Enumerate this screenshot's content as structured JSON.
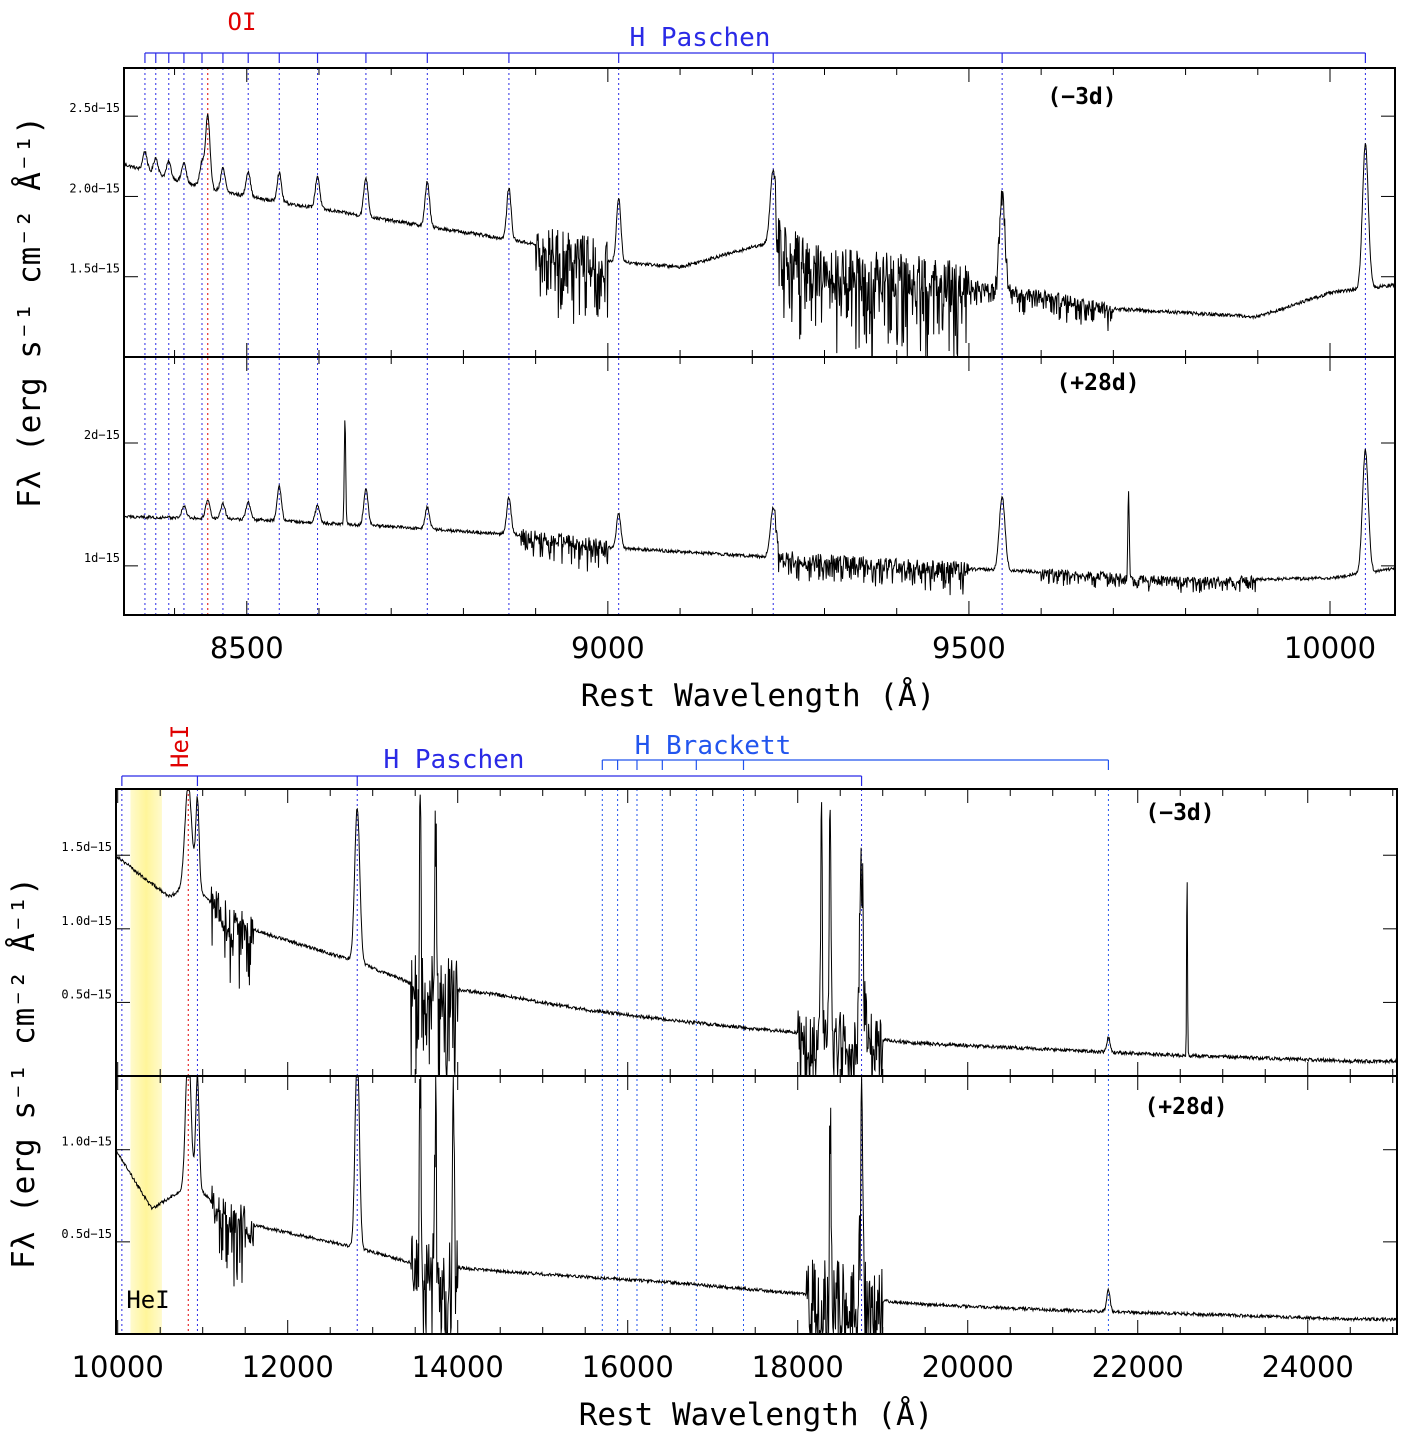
{
  "colors": {
    "hydrogen_series": "#2a2ae6",
    "brackett_series": "#2255ee",
    "element_line": "#e00000",
    "spectrum": "#000000",
    "telluric_band": "#fff59a"
  },
  "chart_data": [
    {
      "type": "line",
      "panel_group": "optical",
      "xlabel": "Rest Wavelength (Å)",
      "ylabel": "Fλ (erg s⁻¹ cm⁻² Å⁻¹)",
      "xlim": [
        8330,
        10090
      ],
      "xticks": [
        8500,
        9000,
        9500,
        10000
      ],
      "xtick_labels": [
        "8500",
        "9000",
        "9500",
        "10000"
      ],
      "line_groups": [
        {
          "name": "H Paschen",
          "color": "#2a2ae6",
          "wavelengths": [
            8359,
            8374,
            8392,
            8413,
            8438,
            8467,
            8502,
            8545,
            8598,
            8665,
            8750,
            8863,
            9015,
            9229,
            9546,
            10049
          ]
        },
        {
          "name": "OI",
          "color": "#e00000",
          "wavelengths": [
            8446
          ]
        }
      ],
      "panels": [
        {
          "epoch": "(−3d)",
          "ylim": [
            1.0,
            2.8
          ],
          "yticks": [
            1.5,
            2.0,
            2.5
          ],
          "ytick_labels": [
            "1.5d−15",
            "2.0d−15",
            "2.5d−15"
          ],
          "continuum": [
            [
              8330,
              2.2
            ],
            [
              8420,
              2.08
            ],
            [
              8500,
              2.0
            ],
            [
              8700,
              1.85
            ],
            [
              8880,
              1.72
            ],
            [
              9000,
              1.6
            ],
            [
              9100,
              1.56
            ],
            [
              9229,
              1.72
            ],
            [
              9300,
              1.55
            ],
            [
              9550,
              1.42
            ],
            [
              9700,
              1.3
            ],
            [
              9900,
              1.25
            ],
            [
              10000,
              1.4
            ],
            [
              10090,
              1.45
            ]
          ],
          "lines": [
            {
              "x": 8359,
              "peak": 0.12,
              "width": 3
            },
            {
              "x": 8374,
              "peak": 0.1,
              "width": 3
            },
            {
              "x": 8392,
              "peak": 0.1,
              "width": 3
            },
            {
              "x": 8413,
              "peak": 0.12,
              "width": 3
            },
            {
              "x": 8438,
              "peak": 0.15,
              "width": 3
            },
            {
              "x": 8446,
              "peak": 0.45,
              "width": 3
            },
            {
              "x": 8467,
              "peak": 0.14,
              "width": 3
            },
            {
              "x": 8502,
              "peak": 0.16,
              "width": 3
            },
            {
              "x": 8545,
              "peak": 0.18,
              "width": 3
            },
            {
              "x": 8598,
              "peak": 0.2,
              "width": 3
            },
            {
              "x": 8665,
              "peak": 0.24,
              "width": 3
            },
            {
              "x": 8750,
              "peak": 0.28,
              "width": 3
            },
            {
              "x": 8863,
              "peak": 0.32,
              "width": 3
            },
            {
              "x": 9015,
              "peak": 0.4,
              "width": 3
            },
            {
              "x": 9229,
              "peak": 0.45,
              "width": 4
            },
            {
              "x": 9546,
              "peak": 0.6,
              "width": 4
            },
            {
              "x": 10049,
              "peak": 0.9,
              "width": 4
            }
          ],
          "noisy_ranges": [
            [
              8900,
              9000,
              0.25
            ],
            [
              9230,
              9500,
              0.3
            ],
            [
              9500,
              9700,
              0.08
            ]
          ]
        },
        {
          "epoch": "(+28d)",
          "ylim": [
            0.6,
            2.7
          ],
          "yticks": [
            1.0,
            2.0
          ],
          "ytick_labels": [
            "1d−15",
            "2d−15"
          ],
          "continuum": [
            [
              8330,
              1.4
            ],
            [
              8500,
              1.38
            ],
            [
              8700,
              1.32
            ],
            [
              8880,
              1.25
            ],
            [
              9000,
              1.15
            ],
            [
              9200,
              1.08
            ],
            [
              9400,
              1.0
            ],
            [
              9600,
              0.95
            ],
            [
              9800,
              0.88
            ],
            [
              10000,
              0.9
            ],
            [
              10090,
              0.98
            ]
          ],
          "lines": [
            {
              "x": 8413,
              "peak": 0.1,
              "width": 3
            },
            {
              "x": 8446,
              "peak": 0.15,
              "width": 3
            },
            {
              "x": 8467,
              "peak": 0.12,
              "width": 3
            },
            {
              "x": 8502,
              "peak": 0.14,
              "width": 3
            },
            {
              "x": 8545,
              "peak": 0.28,
              "width": 3
            },
            {
              "x": 8598,
              "peak": 0.14,
              "width": 3
            },
            {
              "x": 8636,
              "peak": 0.85,
              "width": 1
            },
            {
              "x": 8665,
              "peak": 0.3,
              "width": 3
            },
            {
              "x": 8750,
              "peak": 0.18,
              "width": 3
            },
            {
              "x": 8863,
              "peak": 0.3,
              "width": 3
            },
            {
              "x": 9015,
              "peak": 0.28,
              "width": 3
            },
            {
              "x": 9229,
              "peak": 0.4,
              "width": 4
            },
            {
              "x": 9546,
              "peak": 0.6,
              "width": 4
            },
            {
              "x": 9721,
              "peak": 0.7,
              "width": 1
            },
            {
              "x": 10049,
              "peak": 1.0,
              "width": 4
            }
          ],
          "noisy_ranges": [
            [
              8880,
              9000,
              0.12
            ],
            [
              9230,
              9500,
              0.12
            ],
            [
              9600,
              9900,
              0.06
            ]
          ]
        }
      ]
    },
    {
      "type": "line",
      "panel_group": "near-infrared",
      "xlabel": "Rest Wavelength (Å)",
      "ylabel": "Fλ (erg s⁻¹ cm⁻² Å⁻¹)",
      "xlim": [
        9980,
        25050
      ],
      "xticks": [
        10000,
        12000,
        14000,
        16000,
        18000,
        20000,
        22000,
        24000
      ],
      "xtick_labels": [
        "10000",
        "12000",
        "14000",
        "16000",
        "18000",
        "20000",
        "22000",
        "24000"
      ],
      "shaded_band": {
        "x0": 10150,
        "x1": 10520,
        "label": "HeI"
      },
      "line_groups": [
        {
          "name": "H Paschen",
          "color": "#2a2ae6",
          "wavelengths": [
            10049,
            10938,
            12818,
            18751
          ]
        },
        {
          "name": "H Brackett",
          "color": "#2255ee",
          "wavelengths": [
            15701,
            15881,
            16109,
            16407,
            16807,
            17362,
            21655
          ]
        },
        {
          "name": "HeI",
          "color": "#e00000",
          "wavelengths": [
            10830
          ]
        }
      ],
      "panels": [
        {
          "epoch": "(−3d)",
          "ylim": [
            0.0,
            1.95
          ],
          "yticks": [
            0.5,
            1.0,
            1.5
          ],
          "ytick_labels": [
            "0.5d−15",
            "1.0d−15",
            "1.5d−15"
          ],
          "continuum": [
            [
              9980,
              1.5
            ],
            [
              10300,
              1.35
            ],
            [
              10600,
              1.22
            ],
            [
              10900,
              1.3
            ],
            [
              11300,
              1.05
            ],
            [
              12000,
              0.92
            ],
            [
              12800,
              0.78
            ],
            [
              13500,
              0.62
            ],
            [
              14500,
              0.55
            ],
            [
              15500,
              0.45
            ],
            [
              16500,
              0.38
            ],
            [
              17500,
              0.32
            ],
            [
              18500,
              0.27
            ],
            [
              19500,
              0.22
            ],
            [
              21000,
              0.18
            ],
            [
              22500,
              0.14
            ],
            [
              24600,
              0.1
            ]
          ],
          "lines": [
            {
              "x": 10830,
              "peak": 0.7,
              "width": 40
            },
            {
              "x": 10938,
              "peak": 0.6,
              "width": 20
            },
            {
              "x": 12818,
              "peak": 1.05,
              "width": 30
            },
            {
              "x": 13560,
              "peak": 1.3,
              "width": 10
            },
            {
              "x": 13740,
              "peak": 1.2,
              "width": 10
            },
            {
              "x": 18280,
              "peak": 1.6,
              "width": 10
            },
            {
              "x": 18380,
              "peak": 1.5,
              "width": 10
            },
            {
              "x": 18751,
              "peak": 1.3,
              "width": 25
            },
            {
              "x": 21655,
              "peak": 0.1,
              "width": 20
            },
            {
              "x": 22580,
              "peak": 1.3,
              "width": 5
            }
          ],
          "noisy_ranges": [
            [
              11100,
              11600,
              0.25
            ],
            [
              13450,
              14000,
              0.45
            ],
            [
              18000,
              19000,
              0.35
            ]
          ]
        },
        {
          "epoch": "(+28d)",
          "ylim": [
            0.0,
            1.4
          ],
          "yticks": [
            0.5,
            1.0
          ],
          "ytick_labels": [
            "0.5d−15",
            "1.0d−15"
          ],
          "continuum": [
            [
              9980,
              1.0
            ],
            [
              10400,
              0.68
            ],
            [
              10900,
              0.82
            ],
            [
              11300,
              0.62
            ],
            [
              12000,
              0.55
            ],
            [
              12800,
              0.47
            ],
            [
              13500,
              0.38
            ],
            [
              14500,
              0.34
            ],
            [
              15500,
              0.31
            ],
            [
              16500,
              0.28
            ],
            [
              17500,
              0.24
            ],
            [
              18500,
              0.2
            ],
            [
              19500,
              0.16
            ],
            [
              21000,
              0.13
            ],
            [
              22500,
              0.11
            ],
            [
              24600,
              0.08
            ]
          ],
          "lines": [
            {
              "x": 10830,
              "peak": 0.8,
              "width": 30
            },
            {
              "x": 10938,
              "peak": 0.6,
              "width": 20
            },
            {
              "x": 12818,
              "peak": 1.1,
              "width": 25
            },
            {
              "x": 13560,
              "peak": 1.1,
              "width": 10
            },
            {
              "x": 13740,
              "peak": 1.05,
              "width": 10
            },
            {
              "x": 13950,
              "peak": 1.0,
              "width": 10
            },
            {
              "x": 18380,
              "peak": 1.2,
              "width": 10
            },
            {
              "x": 18751,
              "peak": 1.2,
              "width": 15
            },
            {
              "x": 21655,
              "peak": 0.12,
              "width": 20
            }
          ],
          "noisy_ranges": [
            [
              11100,
              11600,
              0.2
            ],
            [
              13450,
              14000,
              0.35
            ],
            [
              18100,
              19000,
              0.4
            ]
          ]
        }
      ]
    }
  ]
}
